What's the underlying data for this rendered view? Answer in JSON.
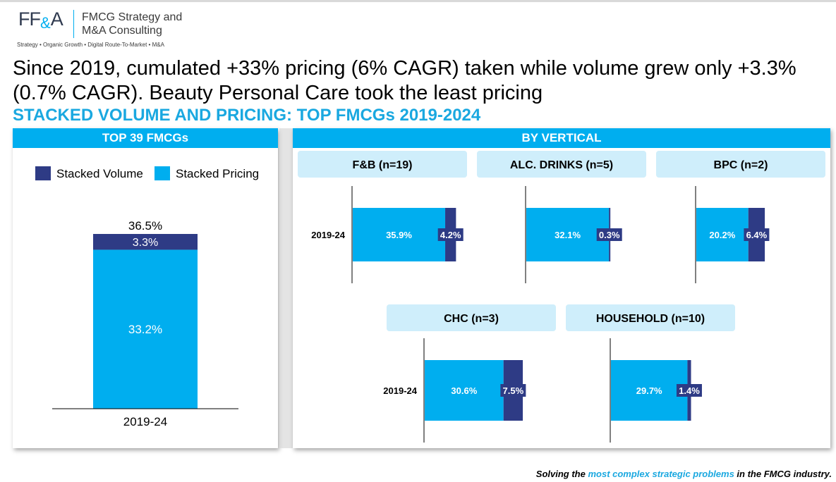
{
  "logo": {
    "mark_ff": "FF",
    "mark_amp": "&",
    "mark_a": "A",
    "name_line1": "FMCG Strategy and",
    "name_line2": "M&A Consulting",
    "tagline": "Strategy • Organic Growth • Digital Route-To-Market • M&A"
  },
  "headline": "Since 2019, cumulated +33% pricing (6% CAGR) taken while volume grew only +3.3% (0.7% CAGR). Beauty Personal Care took the least pricing",
  "subtitle": "STACKED VOLUME AND PRICING: TOP FMCGs 2019-2024",
  "left_panel": {
    "header": "TOP 39 FMCGs"
  },
  "right_panel": {
    "header": "BY VERTICAL"
  },
  "colors": {
    "volume": "#2e3b85",
    "pricing": "#00aeef",
    "header_bg": "#00aeef",
    "label_bg": "#cfeefb"
  },
  "chart_data": [
    {
      "type": "bar",
      "title": "TOP 39 FMCGs",
      "categories": [
        "2019-24"
      ],
      "series": [
        {
          "name": "Stacked Pricing",
          "values": [
            33.2
          ],
          "labels": [
            "33.2%"
          ]
        },
        {
          "name": "Stacked Volume",
          "values": [
            3.3
          ],
          "labels": [
            "3.3%"
          ]
        }
      ],
      "totals": [
        "36.5%"
      ],
      "stacked": true,
      "legend": "top"
    },
    {
      "type": "bar",
      "orientation": "horizontal",
      "stacked": true,
      "title": "F&B (n=19)",
      "categories": [
        "2019-24"
      ],
      "series": [
        {
          "values": [
            35.9
          ],
          "labels": [
            "35.9%"
          ]
        },
        {
          "values": [
            4.2
          ],
          "labels": [
            "4.2%"
          ]
        }
      ]
    },
    {
      "type": "bar",
      "orientation": "horizontal",
      "stacked": true,
      "title": "ALC. DRINKS (n=5)",
      "categories": [
        ""
      ],
      "series": [
        {
          "values": [
            32.1
          ],
          "labels": [
            "32.1%"
          ]
        },
        {
          "values": [
            0.3
          ],
          "labels": [
            "0.3%"
          ]
        }
      ]
    },
    {
      "type": "bar",
      "orientation": "horizontal",
      "stacked": true,
      "title": "BPC (n=2)",
      "categories": [
        ""
      ],
      "series": [
        {
          "values": [
            20.2
          ],
          "labels": [
            "20.2%"
          ]
        },
        {
          "values": [
            6.4
          ],
          "labels": [
            "6.4%"
          ]
        }
      ]
    },
    {
      "type": "bar",
      "orientation": "horizontal",
      "stacked": true,
      "title": "CHC (n=3)",
      "categories": [
        "2019-24"
      ],
      "series": [
        {
          "values": [
            30.6
          ],
          "labels": [
            "30.6%"
          ]
        },
        {
          "values": [
            7.5
          ],
          "labels": [
            "7.5%"
          ]
        }
      ]
    },
    {
      "type": "bar",
      "orientation": "horizontal",
      "stacked": true,
      "title": "HOUSEHOLD (n=10)",
      "categories": [
        ""
      ],
      "series": [
        {
          "values": [
            29.7
          ],
          "labels": [
            "29.7%"
          ]
        },
        {
          "values": [
            1.4
          ],
          "labels": [
            "1.4%"
          ]
        }
      ]
    }
  ],
  "footer": {
    "prefix": "Solving the ",
    "highlight": "most complex strategic problems",
    "suffix": " in the FMCG industry."
  }
}
